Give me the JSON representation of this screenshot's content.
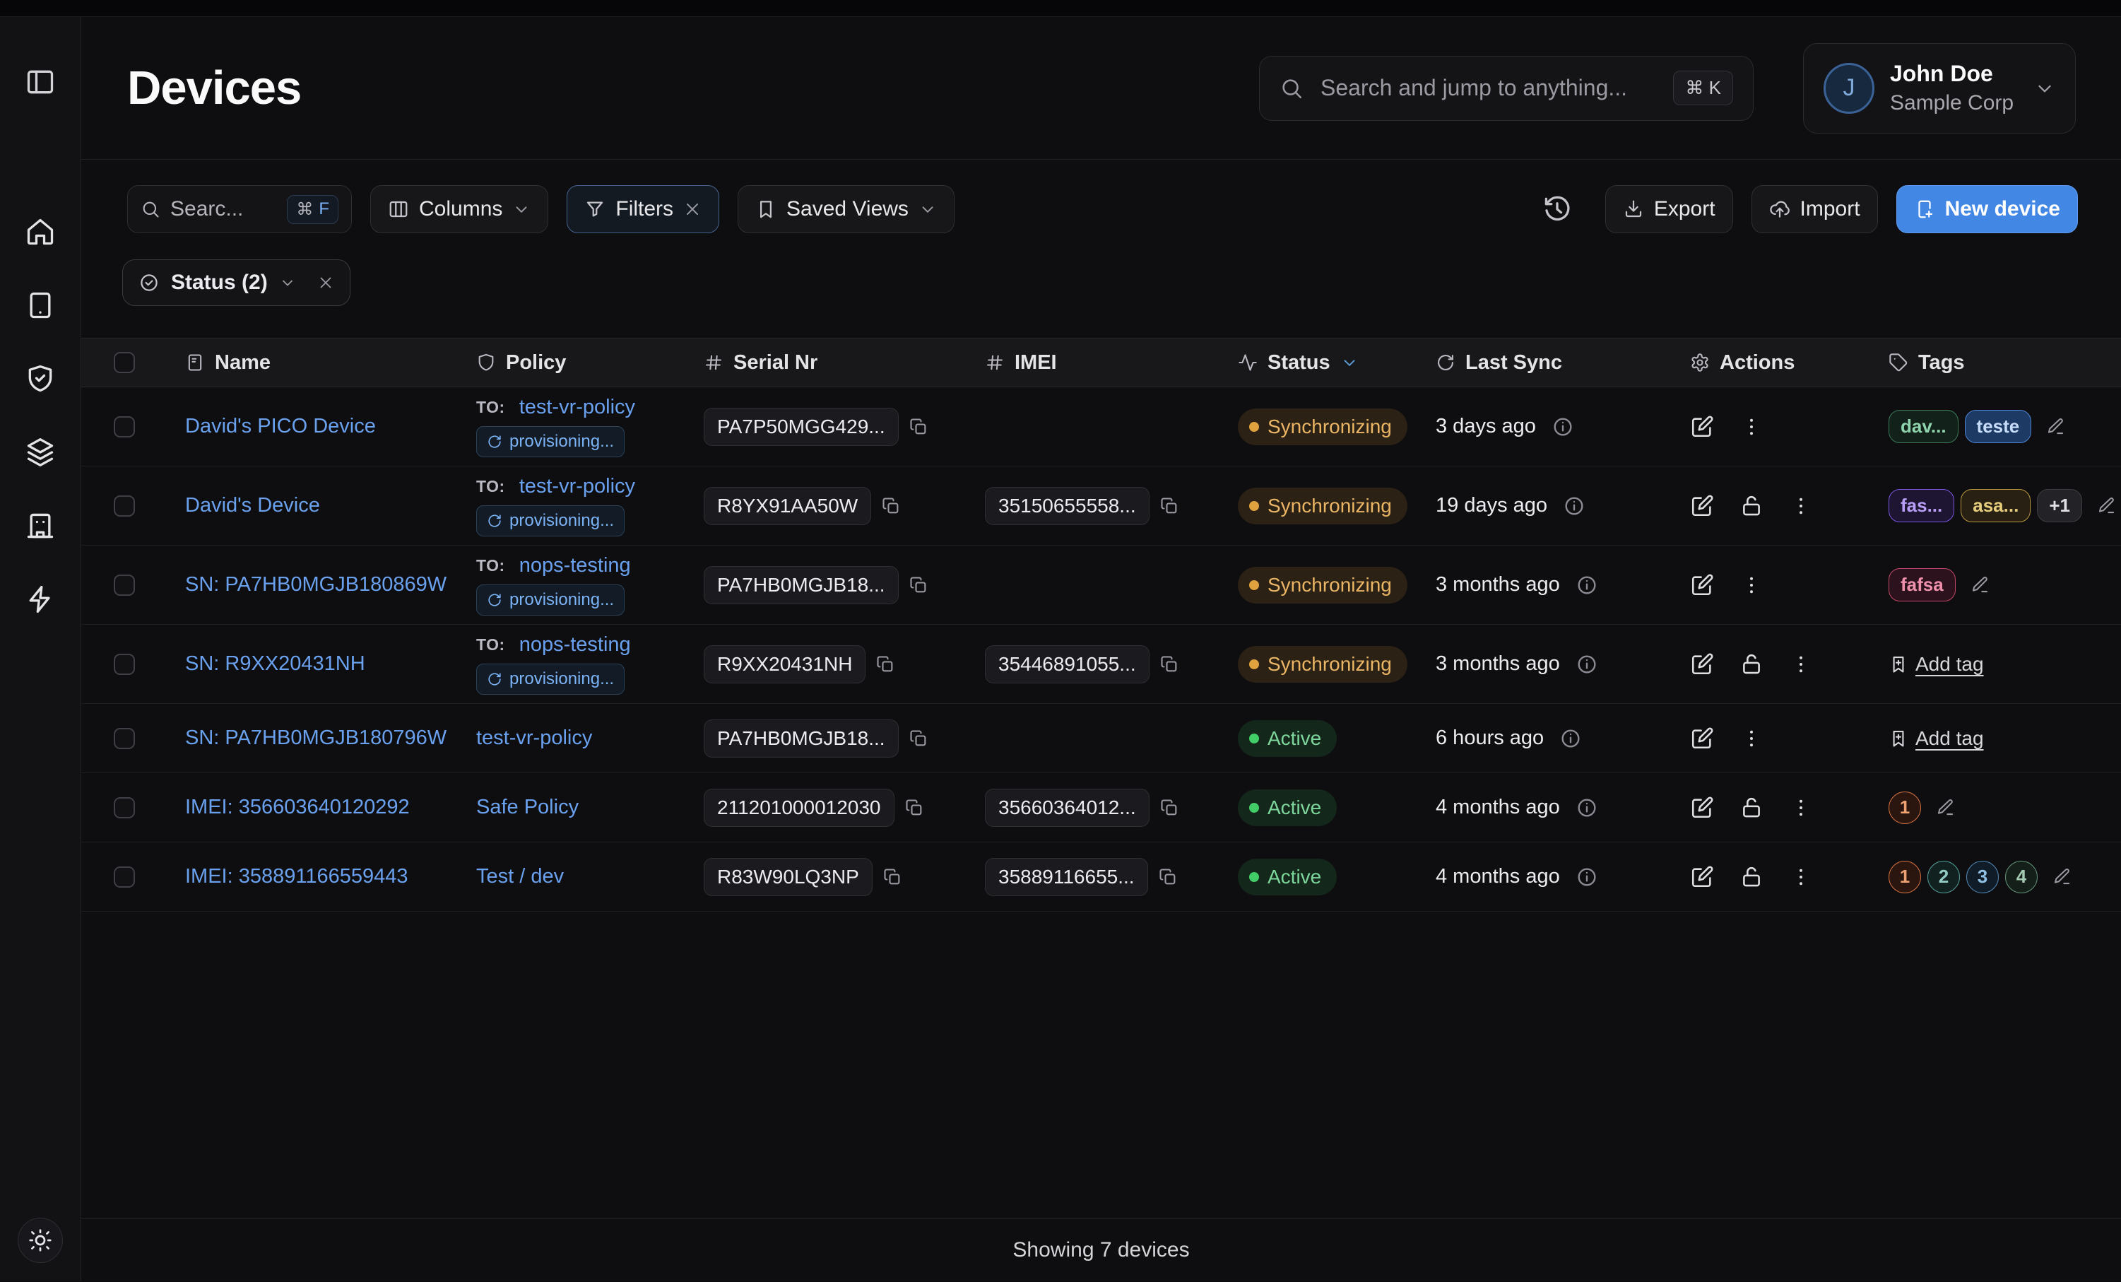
{
  "page_title": "Devices",
  "global_search": {
    "placeholder": "Search and jump to anything...",
    "shortcut": "⌘ K"
  },
  "user": {
    "initial": "J",
    "name": "John Doe",
    "org": "Sample Corp"
  },
  "sidebar": {
    "toggle_icon": "panel-left-icon",
    "items": [
      {
        "name": "home",
        "icon": "home-icon"
      },
      {
        "name": "devices",
        "icon": "tablet-icon"
      },
      {
        "name": "policies",
        "icon": "shield-check-icon"
      },
      {
        "name": "inventory",
        "icon": "layers-icon"
      },
      {
        "name": "organization",
        "icon": "building-icon"
      },
      {
        "name": "automations",
        "icon": "zap-icon"
      }
    ],
    "theme_toggle_icon": "sun-icon"
  },
  "toolbar": {
    "search_placeholder": "Searc...",
    "search_shortcut_mod": "⌘",
    "search_shortcut_key": "F",
    "columns_label": "Columns",
    "filters_label": "Filters",
    "saved_views_label": "Saved Views",
    "export_label": "Export",
    "import_label": "Import",
    "new_device_label": "New device"
  },
  "filter_chip": {
    "label": "Status (2)",
    "icon": "circle-check-icon"
  },
  "table": {
    "columns": [
      {
        "label": "Name",
        "icon": "device-note-icon"
      },
      {
        "label": "Policy",
        "icon": "shield-icon"
      },
      {
        "label": "Serial Nr",
        "icon": "hash-icon"
      },
      {
        "label": "IMEI",
        "icon": "hash-icon"
      },
      {
        "label": "Status",
        "icon": "activity-icon",
        "sorted": true
      },
      {
        "label": "Last Sync",
        "icon": "refresh-icon"
      },
      {
        "label": "Actions",
        "icon": "gear-icon"
      },
      {
        "label": "Tags",
        "icon": "tag-icon"
      }
    ],
    "rows": [
      {
        "name": "David's PICO Device",
        "policy": {
          "to_prefix": "TO:",
          "link": "test-vr-policy",
          "badge": "provisioning..."
        },
        "serial": "PA7P50MGG429...",
        "imei": "",
        "status": {
          "label": "Synchronizing",
          "kind": "syncing"
        },
        "last_sync": "3 days ago",
        "actions": [
          "edit",
          "menu"
        ],
        "tags": [
          {
            "label": "dav...",
            "color": "green",
            "shape": "pill"
          },
          {
            "label": "teste",
            "color": "blue",
            "shape": "pill"
          }
        ],
        "tag_edit": true
      },
      {
        "name": "David's Device",
        "policy": {
          "to_prefix": "TO:",
          "link": "test-vr-policy",
          "badge": "provisioning..."
        },
        "serial": "R8YX91AA50W",
        "imei": "35150655558...",
        "status": {
          "label": "Synchronizing",
          "kind": "syncing"
        },
        "last_sync": "19 days ago",
        "actions": [
          "edit",
          "lock",
          "menu"
        ],
        "tags": [
          {
            "label": "fas...",
            "color": "purple",
            "shape": "pill"
          },
          {
            "label": "asa...",
            "color": "amber",
            "shape": "pill"
          },
          {
            "label": "+1",
            "color": "gray",
            "shape": "pill"
          }
        ],
        "tag_edit": true
      },
      {
        "name": "SN: PA7HB0MGJB180869W",
        "policy": {
          "to_prefix": "TO:",
          "link": "nops-testing",
          "badge": "provisioning..."
        },
        "serial": "PA7HB0MGJB18...",
        "imei": "",
        "status": {
          "label": "Synchronizing",
          "kind": "syncing"
        },
        "last_sync": "3 months ago",
        "actions": [
          "edit",
          "menu"
        ],
        "tags": [
          {
            "label": "fafsa",
            "color": "red",
            "shape": "pill"
          }
        ],
        "tag_edit": true
      },
      {
        "name": "SN: R9XX20431NH",
        "policy": {
          "to_prefix": "TO:",
          "link": "nops-testing",
          "badge": "provisioning..."
        },
        "serial": "R9XX20431NH",
        "imei": "35446891055...",
        "status": {
          "label": "Synchronizing",
          "kind": "syncing"
        },
        "last_sync": "3 months ago",
        "actions": [
          "edit",
          "lock",
          "menu"
        ],
        "tags": [],
        "add_tag_label": "Add tag"
      },
      {
        "name": "SN: PA7HB0MGJB180796W",
        "policy": {
          "link": "test-vr-policy"
        },
        "serial": "PA7HB0MGJB18...",
        "imei": "",
        "status": {
          "label": "Active",
          "kind": "active"
        },
        "last_sync": "6 hours ago",
        "actions": [
          "edit",
          "menu"
        ],
        "tags": [],
        "add_tag_label": "Add tag"
      },
      {
        "name": "IMEI: 356603640120292",
        "policy": {
          "link": "Safe Policy"
        },
        "serial": "211201000012030",
        "imei": "35660364012...",
        "status": {
          "label": "Active",
          "kind": "active"
        },
        "last_sync": "4 months ago",
        "actions": [
          "edit",
          "lock",
          "menu"
        ],
        "tags": [
          {
            "label": "1",
            "color": "orange",
            "shape": "circle"
          }
        ],
        "tag_edit": true
      },
      {
        "name": "IMEI: 358891166559443",
        "policy": {
          "link": "Test / dev"
        },
        "serial": "R83W90LQ3NP",
        "imei": "35889116655...",
        "status": {
          "label": "Active",
          "kind": "active"
        },
        "last_sync": "4 months ago",
        "actions": [
          "edit",
          "lock",
          "menu"
        ],
        "tags": [
          {
            "label": "1",
            "color": "orange",
            "shape": "circle"
          },
          {
            "label": "2",
            "color": "teal",
            "shape": "circle"
          },
          {
            "label": "3",
            "color": "sky",
            "shape": "circle"
          },
          {
            "label": "4",
            "color": "sage",
            "shape": "circle"
          }
        ],
        "tag_edit": true
      }
    ]
  },
  "footer": {
    "summary": "Showing 7 devices"
  },
  "palette": {
    "accent": "#4387e5",
    "link": "#6aa1ee",
    "status": {
      "syncing": {
        "text": "#eab565",
        "dot": "#e0a23e",
        "bg": "#2b2114"
      },
      "active": {
        "text": "#7dd69b",
        "dot": "#43cd68",
        "bg": "#14271b"
      }
    },
    "tags": {
      "green": {
        "text": "#8fd4ac",
        "border": "#3c7a58",
        "bg": "#12211a"
      },
      "blue": {
        "text": "#c6dcf8",
        "border": "#4e85d8",
        "bg": "#1c3a64"
      },
      "purple": {
        "text": "#b79df5",
        "border": "#7a55e0",
        "bg": "#1d1531"
      },
      "amber": {
        "text": "#e7cd7e",
        "border": "#b9973d",
        "bg": "#272013"
      },
      "gray": {
        "text": "#e2e2e6",
        "border": "#3c3c43",
        "bg": "#232327"
      },
      "red": {
        "text": "#ef91ad",
        "border": "#c2476a",
        "bg": "#2b121c"
      },
      "orange": {
        "text": "#eda072",
        "border": "#cf6e3f",
        "bg": "#2a160e"
      },
      "teal": {
        "text": "#93ccc5",
        "border": "#4f9a93",
        "bg": "#11211f"
      },
      "sky": {
        "text": "#8fbfe3",
        "border": "#4f86b5",
        "bg": "#101d28"
      },
      "sage": {
        "text": "#a3c9b1",
        "border": "#5f8f74",
        "bg": "#151f1a"
      }
    }
  }
}
